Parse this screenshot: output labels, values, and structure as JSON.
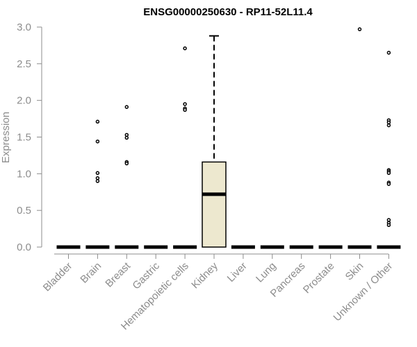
{
  "chart_data": {
    "type": "box",
    "title": "ENSG00000250630 - RP11-52L11.4",
    "ylabel": "Expression",
    "xlabel": "",
    "ylim": [
      0,
      3.0
    ],
    "yticks": [
      "0.0",
      "0.5",
      "1.0",
      "1.5",
      "2.0",
      "2.5",
      "3.0"
    ],
    "categories": [
      "Bladder",
      "Brain",
      "Breast",
      "Gastric",
      "Hematopoietic cells",
      "Kidney",
      "Liver",
      "Lung",
      "Pancreas",
      "Prostate",
      "Skin",
      "Unknown / Other"
    ],
    "box_fill": "#ede8cf",
    "boxes": [
      {
        "category": "Bladder",
        "q1": 0,
        "median": 0,
        "q3": 0,
        "whisker_low": 0,
        "whisker_high": 0,
        "outliers": []
      },
      {
        "category": "Brain",
        "q1": 0,
        "median": 0,
        "q3": 0,
        "whisker_low": 0,
        "whisker_high": 0,
        "outliers": [
          1.71,
          1.44,
          1.01,
          0.94,
          0.9
        ]
      },
      {
        "category": "Breast",
        "q1": 0,
        "median": 0,
        "q3": 0,
        "whisker_low": 0,
        "whisker_high": 0,
        "outliers": [
          1.91,
          1.53,
          1.49,
          1.16,
          1.14
        ]
      },
      {
        "category": "Gastric",
        "q1": 0,
        "median": 0,
        "q3": 0,
        "whisker_low": 0,
        "whisker_high": 0,
        "outliers": []
      },
      {
        "category": "Hematopoietic cells",
        "q1": 0,
        "median": 0,
        "q3": 0,
        "whisker_low": 0,
        "whisker_high": 0,
        "outliers": [
          2.71,
          1.95,
          1.89,
          1.87
        ]
      },
      {
        "category": "Kidney",
        "q1": 0,
        "median": 0.72,
        "q3": 1.16,
        "whisker_low": 0,
        "whisker_high": 2.88,
        "outliers": []
      },
      {
        "category": "Liver",
        "q1": 0,
        "median": 0,
        "q3": 0,
        "whisker_low": 0,
        "whisker_high": 0,
        "outliers": []
      },
      {
        "category": "Lung",
        "q1": 0,
        "median": 0,
        "q3": 0,
        "whisker_low": 0,
        "whisker_high": 0,
        "outliers": []
      },
      {
        "category": "Pancreas",
        "q1": 0,
        "median": 0,
        "q3": 0,
        "whisker_low": 0,
        "whisker_high": 0,
        "outliers": []
      },
      {
        "category": "Prostate",
        "q1": 0,
        "median": 0,
        "q3": 0,
        "whisker_low": 0,
        "whisker_high": 0,
        "outliers": []
      },
      {
        "category": "Skin",
        "q1": 0,
        "median": 0,
        "q3": 0,
        "whisker_low": 0,
        "whisker_high": 0,
        "outliers": [
          2.97
        ]
      },
      {
        "category": "Unknown / Other",
        "q1": 0,
        "median": 0,
        "q3": 0,
        "whisker_low": 0,
        "whisker_high": 0,
        "outliers": [
          2.65,
          1.73,
          1.7,
          1.66,
          1.05,
          1.03,
          1.01,
          0.88,
          0.86,
          0.37,
          0.33,
          0.3
        ]
      }
    ]
  }
}
